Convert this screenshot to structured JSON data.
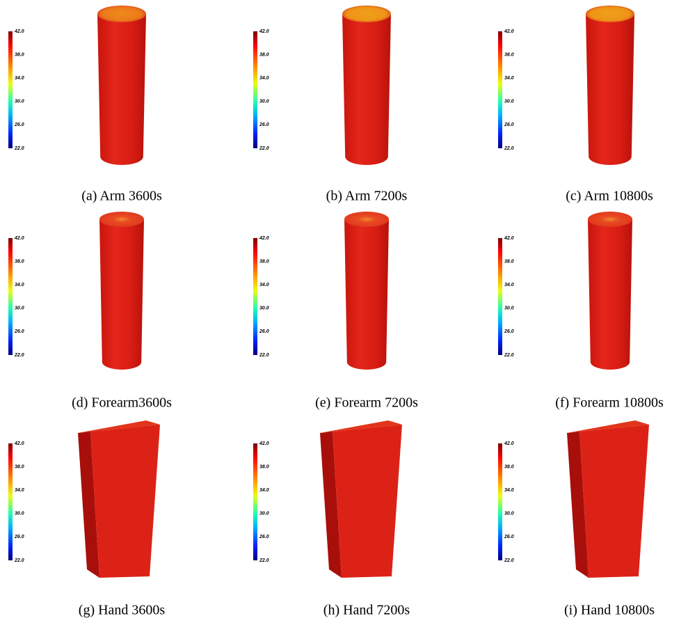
{
  "panels": [
    {
      "caption": "(a) Arm 3600s",
      "colorbar": [
        "42.0",
        "38.0",
        "34.0",
        "30.0",
        "26.0",
        "22.0"
      ]
    },
    {
      "caption": "(b) Arm 7200s",
      "colorbar": [
        "42.0",
        "38.0",
        "34.0",
        "30.0",
        "26.0",
        "22.0"
      ]
    },
    {
      "caption": "(c) Arm 10800s",
      "colorbar": [
        "42.0",
        "38.0",
        "34.0",
        "30.0",
        "26.0",
        "22.0"
      ]
    },
    {
      "caption": "(d) Forearm3600s",
      "colorbar": [
        "42.0",
        "38.0",
        "34.0",
        "30.0",
        "26.0",
        "22.0"
      ]
    },
    {
      "caption": "(e) Forearm 7200s",
      "colorbar": [
        "42.0",
        "38.0",
        "34.0",
        "30.0",
        "26.0",
        "22.0"
      ]
    },
    {
      "caption": "(f) Forearm 10800s",
      "colorbar": [
        "42.0",
        "38.0",
        "34.0",
        "30.0",
        "26.0",
        "22.0"
      ]
    },
    {
      "caption": "(g) Hand 3600s",
      "colorbar": [
        "42.0",
        "38.0",
        "34.0",
        "30.0",
        "26.0",
        "22.0"
      ]
    },
    {
      "caption": "(h) Hand 7200s",
      "colorbar": [
        "42.0",
        "38.0",
        "34.0",
        "30.0",
        "26.0",
        "22.0"
      ]
    },
    {
      "caption": "(i) Hand 10800s",
      "colorbar": [
        "42.0",
        "38.0",
        "34.0",
        "30.0",
        "26.0",
        "22.0"
      ]
    }
  ]
}
